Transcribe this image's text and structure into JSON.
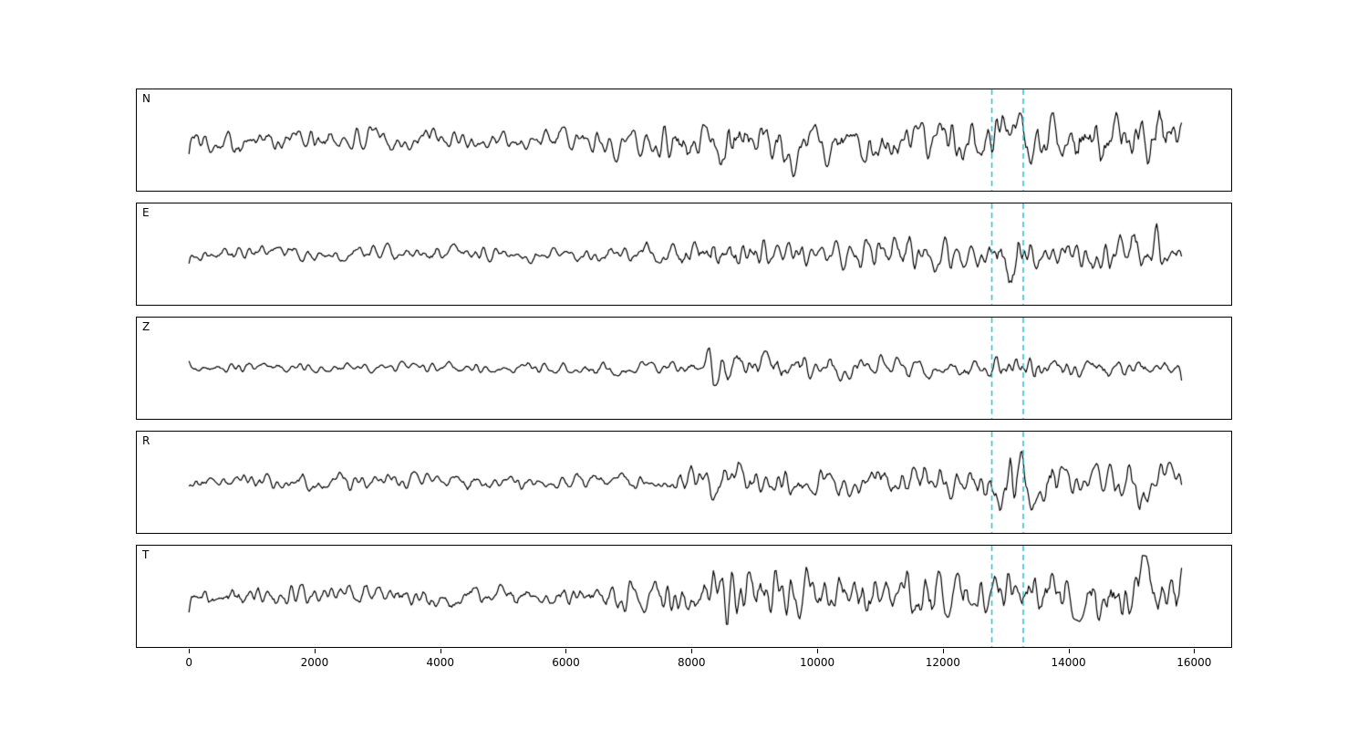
{
  "figure": {
    "title": "",
    "background": "#ffffff"
  },
  "chart_data": {
    "type": "line",
    "title": "",
    "xlabel": "",
    "ylabel": "",
    "grid": false,
    "legend": "none",
    "xlim": [
      -830,
      16590
    ],
    "x_data_range": [
      0,
      15800
    ],
    "xticks": [
      0,
      2000,
      4000,
      6000,
      8000,
      10000,
      12000,
      14000,
      16000
    ],
    "xtick_labels": [
      "0",
      "2000",
      "4000",
      "6000",
      "8000",
      "10000",
      "12000",
      "14000",
      "16000"
    ],
    "line_color": "#000000",
    "n_points": 760,
    "vlines": {
      "positions": [
        12780,
        13280
      ],
      "color": "#25bfcf",
      "style": "dashed"
    },
    "panels": [
      {
        "label": "N",
        "seed": 101,
        "envelope": [
          [
            0,
            13
          ],
          [
            1500,
            15
          ],
          [
            2500,
            14
          ],
          [
            6000,
            13
          ],
          [
            6600,
            19
          ],
          [
            8200,
            21
          ],
          [
            8500,
            40
          ],
          [
            8800,
            24
          ],
          [
            9600,
            38
          ],
          [
            9900,
            25
          ],
          [
            11000,
            26
          ],
          [
            12400,
            28
          ],
          [
            13000,
            38
          ],
          [
            13600,
            33
          ],
          [
            14800,
            35
          ],
          [
            15500,
            30
          ],
          [
            15800,
            22
          ]
        ]
      },
      {
        "label": "E",
        "seed": 202,
        "envelope": [
          [
            0,
            9
          ],
          [
            6800,
            9
          ],
          [
            7800,
            13
          ],
          [
            8300,
            20
          ],
          [
            9000,
            17
          ],
          [
            10500,
            19
          ],
          [
            12700,
            21
          ],
          [
            13000,
            42
          ],
          [
            13300,
            24
          ],
          [
            14200,
            17
          ],
          [
            15200,
            32
          ],
          [
            15600,
            20
          ],
          [
            15800,
            15
          ]
        ]
      },
      {
        "label": "Z",
        "seed": 303,
        "envelope": [
          [
            0,
            6
          ],
          [
            5800,
            7
          ],
          [
            8200,
            8
          ],
          [
            8350,
            40
          ],
          [
            8650,
            16
          ],
          [
            9500,
            15
          ],
          [
            11200,
            15
          ],
          [
            12200,
            13
          ],
          [
            13100,
            17
          ],
          [
            14200,
            10
          ],
          [
            15000,
            12
          ],
          [
            15800,
            10
          ]
        ]
      },
      {
        "label": "R",
        "seed": 404,
        "envelope": [
          [
            0,
            10
          ],
          [
            6500,
            10
          ],
          [
            7600,
            13
          ],
          [
            8300,
            20
          ],
          [
            9200,
            17
          ],
          [
            10200,
            19
          ],
          [
            11600,
            21
          ],
          [
            12700,
            28
          ],
          [
            13100,
            38
          ],
          [
            13500,
            26
          ],
          [
            14200,
            19
          ],
          [
            15200,
            30
          ],
          [
            15600,
            22
          ],
          [
            15800,
            13
          ]
        ]
      },
      {
        "label": "T",
        "seed": 505,
        "envelope": [
          [
            0,
            13
          ],
          [
            6000,
            13
          ],
          [
            7000,
            17
          ],
          [
            8200,
            22
          ],
          [
            8600,
            42
          ],
          [
            9000,
            27
          ],
          [
            9700,
            34
          ],
          [
            10100,
            25
          ],
          [
            11500,
            27
          ],
          [
            12800,
            29
          ],
          [
            13300,
            33
          ],
          [
            14200,
            29
          ],
          [
            15100,
            34
          ],
          [
            15600,
            29
          ],
          [
            15800,
            25
          ]
        ]
      }
    ]
  }
}
